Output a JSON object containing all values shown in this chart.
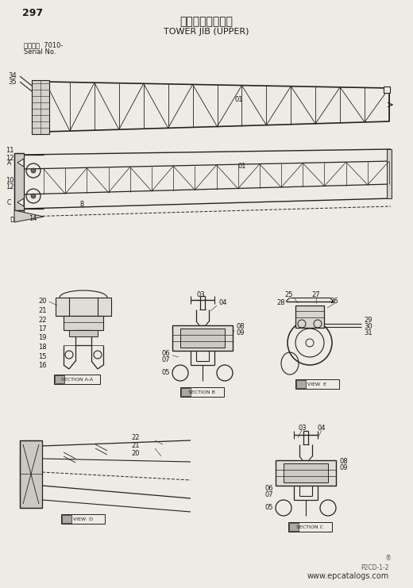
{
  "title_jp": "タワージブ（上）",
  "title_en": "TOWER JIB (UPPER)",
  "page_num": "297",
  "model_label": "適用号機  7010-",
  "serial_label": "Serial No.",
  "watermark": "www.epcatalogs.com",
  "part_code": "P2CD-1-2",
  "bg_color": "#eeebe5",
  "line_color": "#222222",
  "label_color": "#1a1a1a"
}
